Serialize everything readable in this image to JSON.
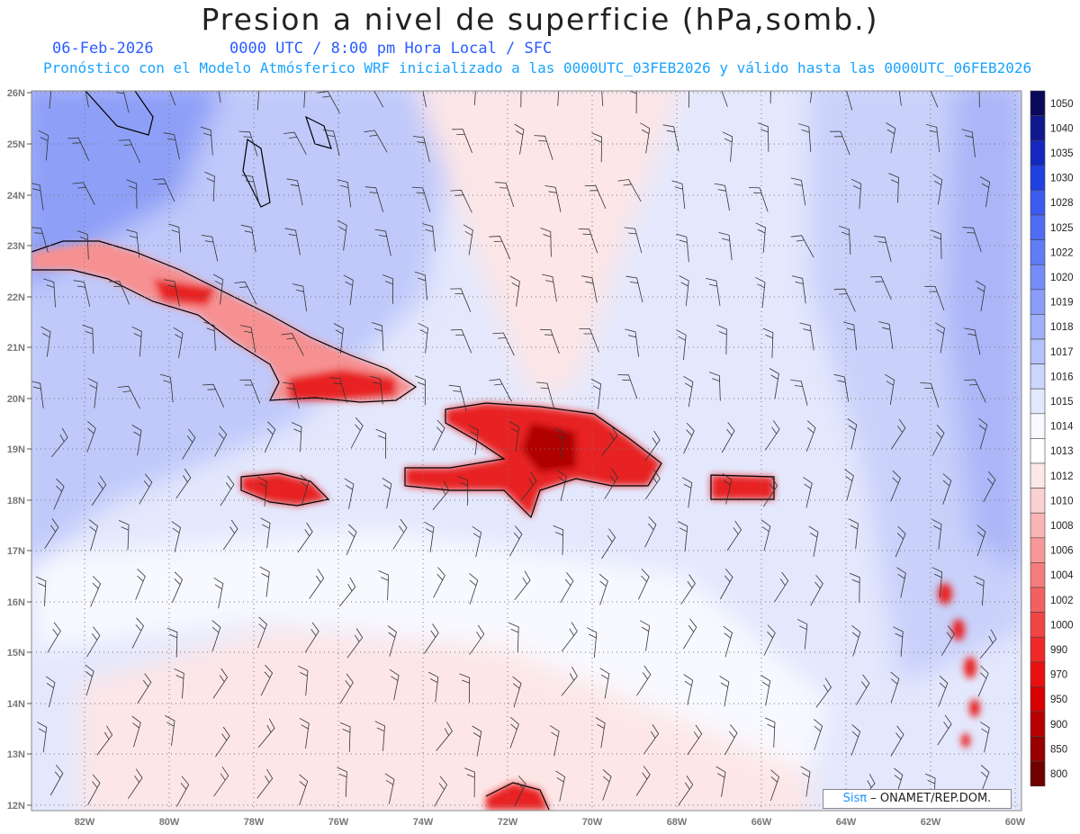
{
  "header": {
    "title": "Presion a nivel de superficie (hPa,somb.)",
    "date": "06-Feb-2026",
    "valid_time": "0000 UTC / 8:00 pm Hora Local / SFC",
    "subtitle": "Pronóstico con el Modelo Atmósferico WRF inicializado a las 0000UTC_03FEB2026 y válido hasta las  0000UTC_06FEB2026"
  },
  "axes": {
    "lat_labels": [
      "26N",
      "25N",
      "24N",
      "23N",
      "22N",
      "21N",
      "20N",
      "19N",
      "18N",
      "17N",
      "16N",
      "15N",
      "14N",
      "13N",
      "12N"
    ],
    "lon_labels": [
      "82W",
      "80W",
      "78W",
      "76W",
      "74W",
      "72W",
      "70W",
      "68W",
      "66W",
      "64W",
      "62W",
      "60W"
    ]
  },
  "colorbar": {
    "levels": [
      "1050",
      "1040",
      "1035",
      "1030",
      "1028",
      "1025",
      "1022",
      "1020",
      "1019",
      "1018",
      "1017",
      "1016",
      "1015",
      "1014",
      "1013",
      "1012",
      "1010",
      "1008",
      "1006",
      "1004",
      "1002",
      "1000",
      "990",
      "970",
      "950",
      "900",
      "850",
      "800"
    ],
    "colors": [
      "#0a0a5a",
      "#101890",
      "#1428c0",
      "#2040e0",
      "#3a5af0",
      "#4f6cf5",
      "#607cf7",
      "#748cf8",
      "#8a9df9",
      "#a0b0fa",
      "#b6c2fb",
      "#ccd5fc",
      "#e2e8fd",
      "#f8f9ff",
      "#ffffff",
      "#fde8e8",
      "#fbd0d0",
      "#f9b4b4",
      "#f79898",
      "#f57c7c",
      "#f36060",
      "#f14444",
      "#ef2828",
      "#e81010",
      "#d80000",
      "#b80000",
      "#980000",
      "#700000"
    ]
  },
  "credit": {
    "sis": "Sisπ",
    "org": "– ONAMET/REP.DOM."
  }
}
